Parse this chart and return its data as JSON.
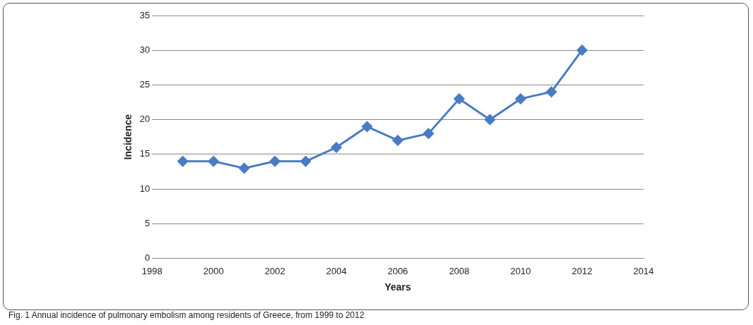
{
  "chart_data": {
    "type": "line",
    "xlabel": "Years",
    "ylabel": "Incidence",
    "x": [
      1999,
      2000,
      2001,
      2002,
      2003,
      2004,
      2005,
      2006,
      2007,
      2008,
      2009,
      2010,
      2011,
      2012
    ],
    "series": [
      {
        "color": "#4a7bc4",
        "values": [
          14,
          14,
          13,
          14,
          14,
          16,
          19,
          17,
          18,
          23,
          20,
          23,
          24,
          30
        ]
      }
    ],
    "xlim": [
      1998,
      2014
    ],
    "xticks": [
      1998,
      2000,
      2002,
      2004,
      2006,
      2008,
      2010,
      2012,
      2014
    ],
    "ylim": [
      0,
      35
    ],
    "yticks": [
      0,
      5,
      10,
      15,
      20,
      25,
      30,
      35
    ],
    "grid": "y",
    "marker": "diamond",
    "line_style": "solid",
    "annotations": [
      "Fig. 1 Annual incidence of pulmonary embolism among residents of Greece, from 1999 to 2012"
    ]
  }
}
